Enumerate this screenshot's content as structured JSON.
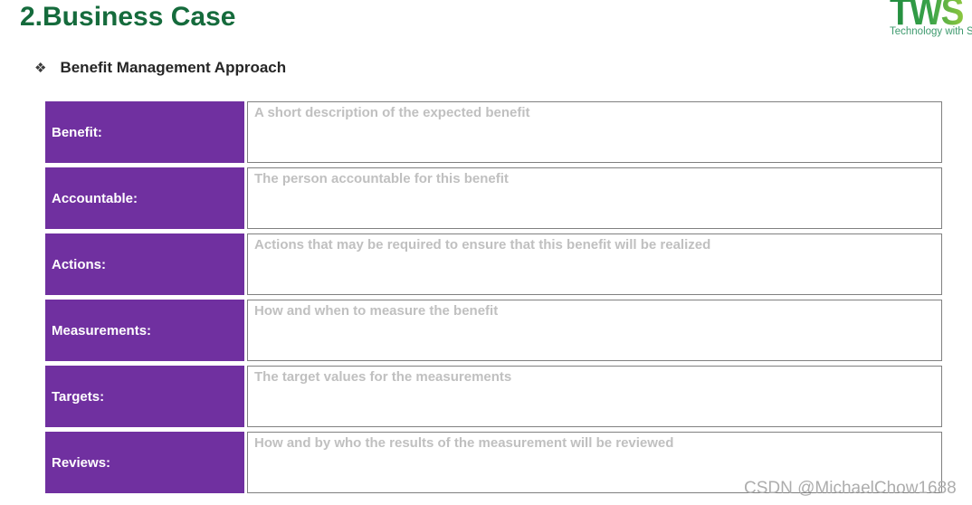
{
  "page": {
    "title": "2.Business Case",
    "bullet_symbol": "❖",
    "subtitle": "Benefit Management Approach"
  },
  "logo": {
    "text": "TWS",
    "tagline": "Technology with Spir"
  },
  "table": {
    "rows": [
      {
        "label": "Benefit:",
        "placeholder": "A short description of the expected benefit"
      },
      {
        "label": "Accountable:",
        "placeholder": "The person accountable for this benefit"
      },
      {
        "label": "Actions:",
        "placeholder": "Actions that may be required to ensure that this benefit will be realized"
      },
      {
        "label": "Measurements:",
        "placeholder": "How and when to measure the benefit"
      },
      {
        "label": "Targets:",
        "placeholder": "The target values for the measurements"
      },
      {
        "label": "Reviews:",
        "placeholder": "How and by who the results of the measurement will be reviewed"
      }
    ]
  },
  "watermark": {
    "text": "CSDN @MichaelChow1688"
  },
  "colors": {
    "title_green": "#156B3C",
    "header_purple": "#7030A0",
    "placeholder_gray": "#C0C0C0",
    "border_gray": "#808080",
    "subtitle_dark": "#262626",
    "tagline_green": "#3E9A6E",
    "watermark_gray": "#ADADAD",
    "logo_green": "#1F8A3E",
    "logo_lime": "#8CC63F"
  }
}
